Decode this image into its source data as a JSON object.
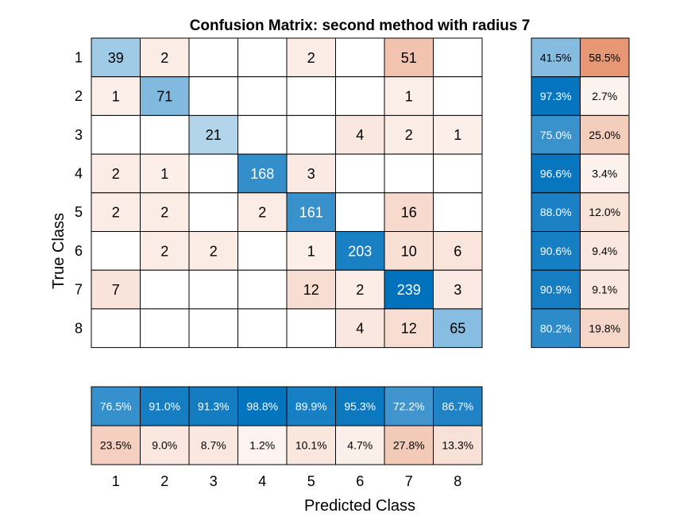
{
  "chart_data": {
    "type": "heatmap",
    "title": "Confusion Matrix: second method with radius 7",
    "xlabel": "Predicted Class",
    "ylabel": "True Class",
    "classes": [
      "1",
      "2",
      "3",
      "4",
      "5",
      "6",
      "7",
      "8"
    ],
    "matrix": [
      [
        39,
        2,
        null,
        null,
        2,
        null,
        51,
        null
      ],
      [
        1,
        71,
        null,
        null,
        null,
        null,
        1,
        null
      ],
      [
        null,
        null,
        21,
        null,
        null,
        4,
        2,
        1
      ],
      [
        2,
        1,
        null,
        168,
        3,
        null,
        null,
        null
      ],
      [
        2,
        2,
        null,
        2,
        161,
        null,
        16,
        null
      ],
      [
        null,
        2,
        2,
        null,
        1,
        203,
        10,
        6
      ],
      [
        7,
        null,
        null,
        null,
        12,
        2,
        239,
        3
      ],
      [
        null,
        null,
        null,
        null,
        null,
        4,
        12,
        65
      ]
    ],
    "row_summary": {
      "correct": [
        "41.5%",
        "97.3%",
        "75.0%",
        "96.6%",
        "88.0%",
        "90.6%",
        "90.9%",
        "80.2%"
      ],
      "incorrect": [
        "58.5%",
        "2.7%",
        "25.0%",
        "3.4%",
        "12.0%",
        "9.4%",
        "9.1%",
        "19.8%"
      ]
    },
    "column_summary": {
      "correct": [
        "76.5%",
        "91.0%",
        "91.3%",
        "98.8%",
        "89.9%",
        "95.3%",
        "72.2%",
        "86.7%"
      ],
      "incorrect": [
        "23.5%",
        "9.0%",
        "8.7%",
        "1.2%",
        "10.1%",
        "4.7%",
        "27.8%",
        "13.3%"
      ]
    },
    "colors": {
      "correct_max": "#0072bd",
      "incorrect_max": "#d95319",
      "empty": "#ffffff",
      "grid": "#000000"
    }
  }
}
